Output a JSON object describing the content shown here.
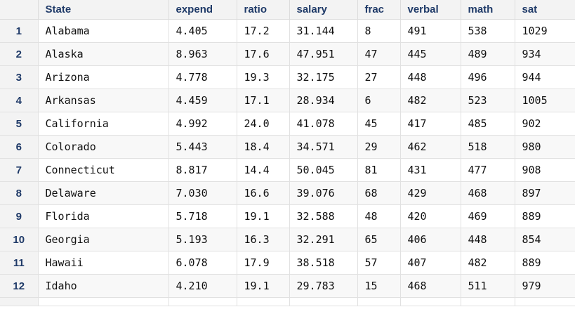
{
  "table": {
    "columns": [
      "",
      "State",
      "expend",
      "ratio",
      "salary",
      "frac",
      "verbal",
      "math",
      "sat"
    ],
    "rows": [
      {
        "idx": "1",
        "cells": [
          "Alabama",
          "4.405",
          "17.2",
          "31.144",
          "8",
          "491",
          "538",
          "1029"
        ]
      },
      {
        "idx": "2",
        "cells": [
          "Alaska",
          "8.963",
          "17.6",
          "47.951",
          "47",
          "445",
          "489",
          "934"
        ]
      },
      {
        "idx": "3",
        "cells": [
          "Arizona",
          "4.778",
          "19.3",
          "32.175",
          "27",
          "448",
          "496",
          "944"
        ]
      },
      {
        "idx": "4",
        "cells": [
          "Arkansas",
          "4.459",
          "17.1",
          "28.934",
          "6",
          "482",
          "523",
          "1005"
        ]
      },
      {
        "idx": "5",
        "cells": [
          "California",
          "4.992",
          "24.0",
          "41.078",
          "45",
          "417",
          "485",
          "902"
        ]
      },
      {
        "idx": "6",
        "cells": [
          "Colorado",
          "5.443",
          "18.4",
          "34.571",
          "29",
          "462",
          "518",
          "980"
        ]
      },
      {
        "idx": "7",
        "cells": [
          "Connecticut",
          "8.817",
          "14.4",
          "50.045",
          "81",
          "431",
          "477",
          "908"
        ]
      },
      {
        "idx": "8",
        "cells": [
          "Delaware",
          "7.030",
          "16.6",
          "39.076",
          "68",
          "429",
          "468",
          "897"
        ]
      },
      {
        "idx": "9",
        "cells": [
          "Florida",
          "5.718",
          "19.1",
          "32.588",
          "48",
          "420",
          "469",
          "889"
        ]
      },
      {
        "idx": "10",
        "cells": [
          "Georgia",
          "5.193",
          "16.3",
          "32.291",
          "65",
          "406",
          "448",
          "854"
        ]
      },
      {
        "idx": "11",
        "cells": [
          "Hawaii",
          "6.078",
          "17.9",
          "38.518",
          "57",
          "407",
          "482",
          "889"
        ]
      },
      {
        "idx": "12",
        "cells": [
          "Idaho",
          "4.210",
          "19.1",
          "29.783",
          "15",
          "468",
          "511",
          "979"
        ]
      }
    ]
  },
  "colors": {
    "header_text": "#1f3a68",
    "header_bg": "#f3f3f3",
    "grid_line": "#e1e1e1"
  }
}
